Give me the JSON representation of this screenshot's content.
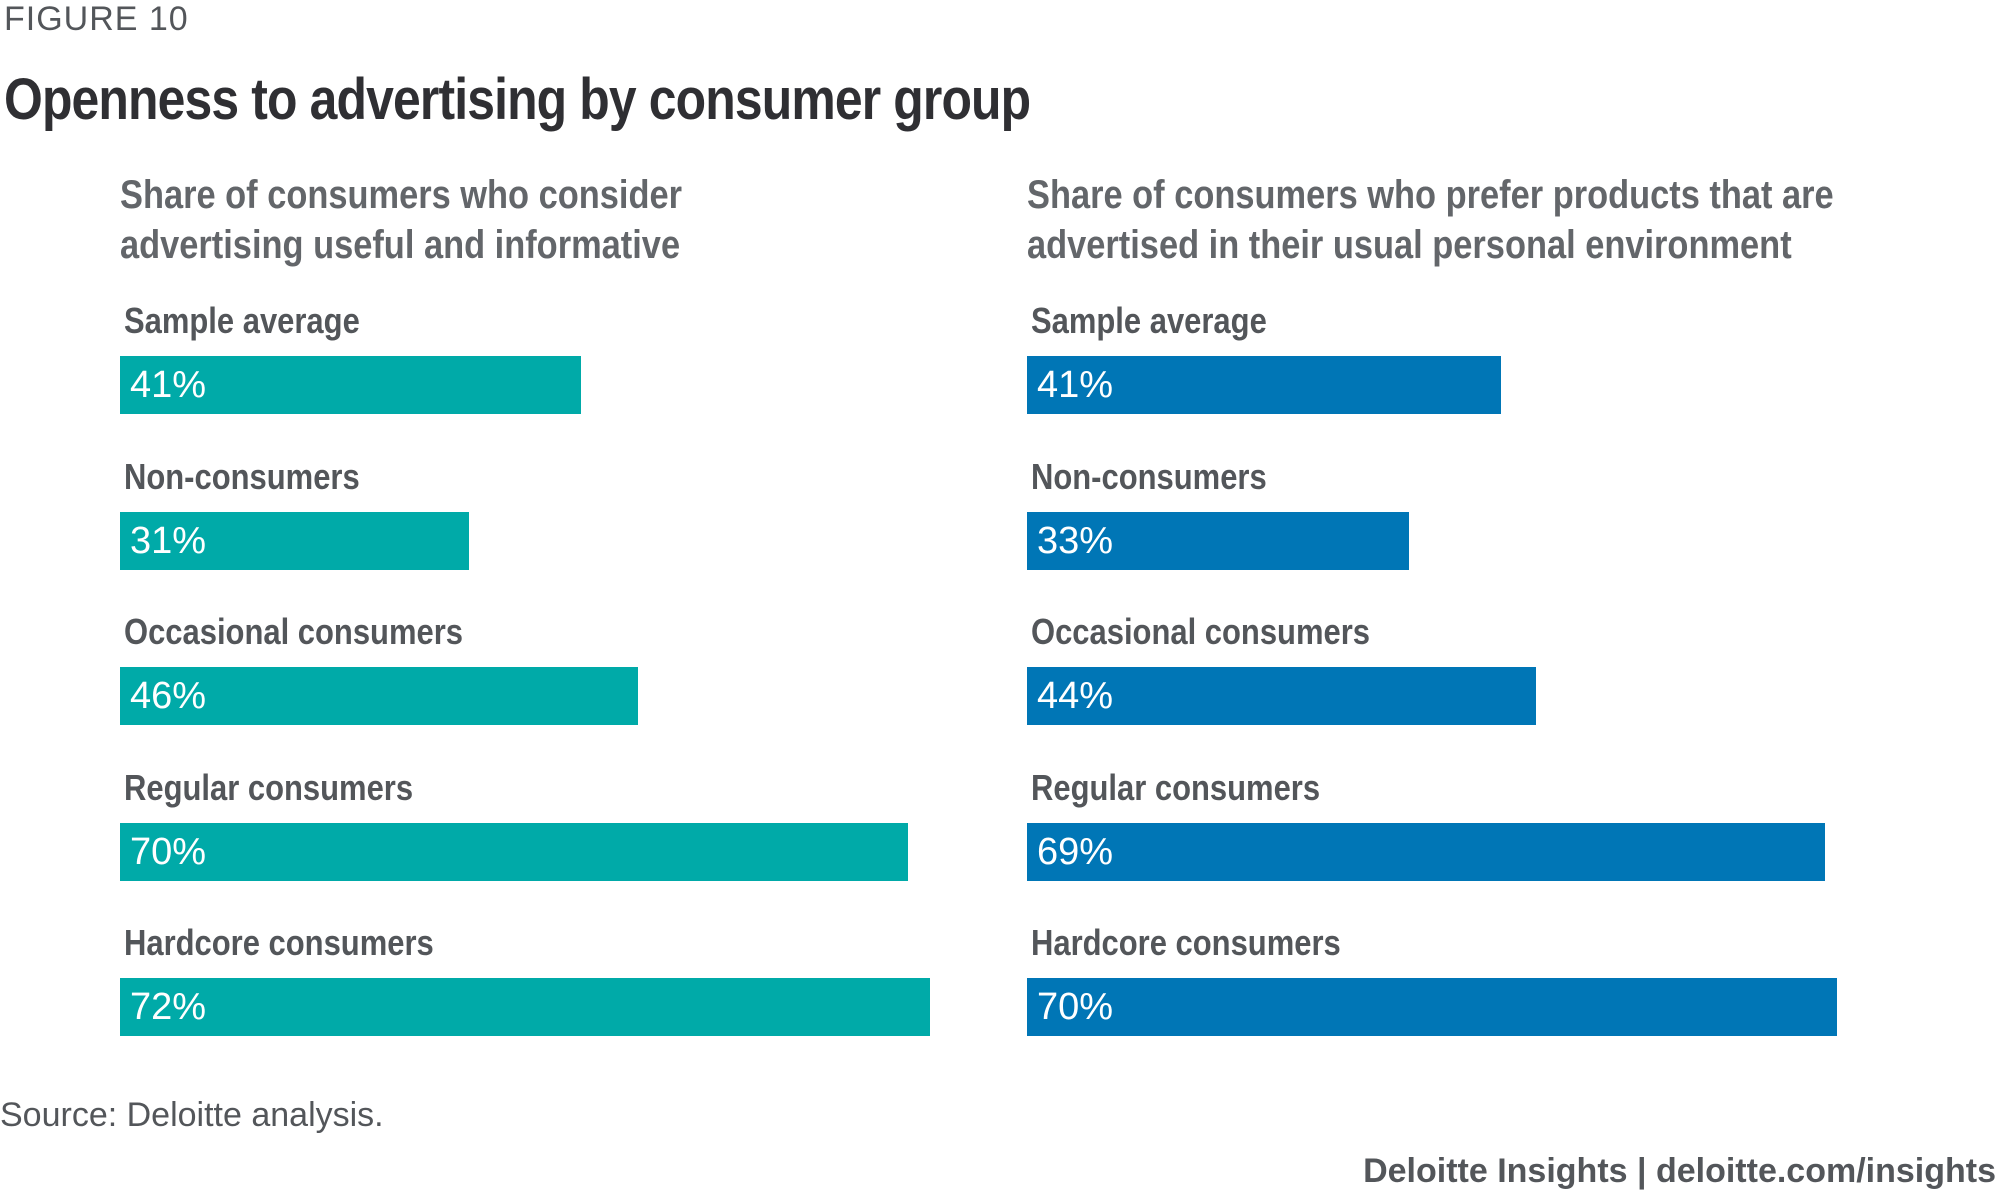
{
  "figure_label": "FIGURE 10",
  "title": "Openness to advertising by consumer group",
  "source": "Source: Deloitte analysis.",
  "footer": "Deloitte Insights | deloitte.com/insights",
  "colors": {
    "left_bar": "#00aaa8",
    "right_bar": "#0076b6"
  },
  "chart_data": [
    {
      "type": "bar",
      "orientation": "horizontal",
      "title_lines": [
        "Share of consumers who consider",
        "advertising useful and informative"
      ],
      "categories": [
        "Sample average",
        "Non-consumers",
        "Occasional consumers",
        "Regular consumers",
        "Hardcore consumers"
      ],
      "values": [
        41,
        31,
        46,
        70,
        72
      ],
      "value_labels": [
        "41%",
        "31%",
        "46%",
        "70%",
        "72%"
      ],
      "unit": "%",
      "xlim": [
        0,
        72
      ],
      "color": "#00aaa8"
    },
    {
      "type": "bar",
      "orientation": "horizontal",
      "title_lines": [
        "Share of consumers who prefer products that are",
        "advertised in their usual personal environment"
      ],
      "categories": [
        "Sample average",
        "Non-consumers",
        "Occasional consumers",
        "Regular consumers",
        "Hardcore consumers"
      ],
      "values": [
        41,
        33,
        44,
        69,
        70
      ],
      "value_labels": [
        "41%",
        "33%",
        "44%",
        "69%",
        "70%"
      ],
      "unit": "%",
      "xlim": [
        0,
        70
      ],
      "color": "#0076b6"
    }
  ]
}
